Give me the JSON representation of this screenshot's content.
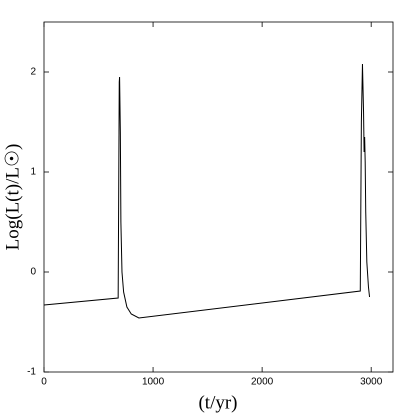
{
  "chart_data": {
    "type": "line",
    "x_label": "(t/yr)",
    "y_label": "Log(L(t)/L☉)",
    "xlim": [
      0,
      3200
    ],
    "ylim": [
      -1,
      2.5
    ],
    "xticks": [
      0,
      1000,
      2000,
      3000
    ],
    "yticks": [
      -1,
      0,
      1,
      2
    ],
    "series": [
      {
        "color": "#000000",
        "x": [
          0,
          680,
          690,
          693,
          700,
          705,
          715,
          730,
          760,
          800,
          870,
          2900,
          2910,
          2920,
          2930,
          2935,
          2940,
          2945,
          2950,
          2960,
          2975,
          2985
        ],
        "values": [
          -0.33,
          -0.26,
          1.9,
          1.95,
          1.4,
          0.5,
          0.0,
          -0.2,
          -0.35,
          -0.42,
          -0.46,
          -0.19,
          1.5,
          2.08,
          1.6,
          1.2,
          1.35,
          1.1,
          0.6,
          0.1,
          -0.15,
          -0.25
        ]
      }
    ]
  }
}
